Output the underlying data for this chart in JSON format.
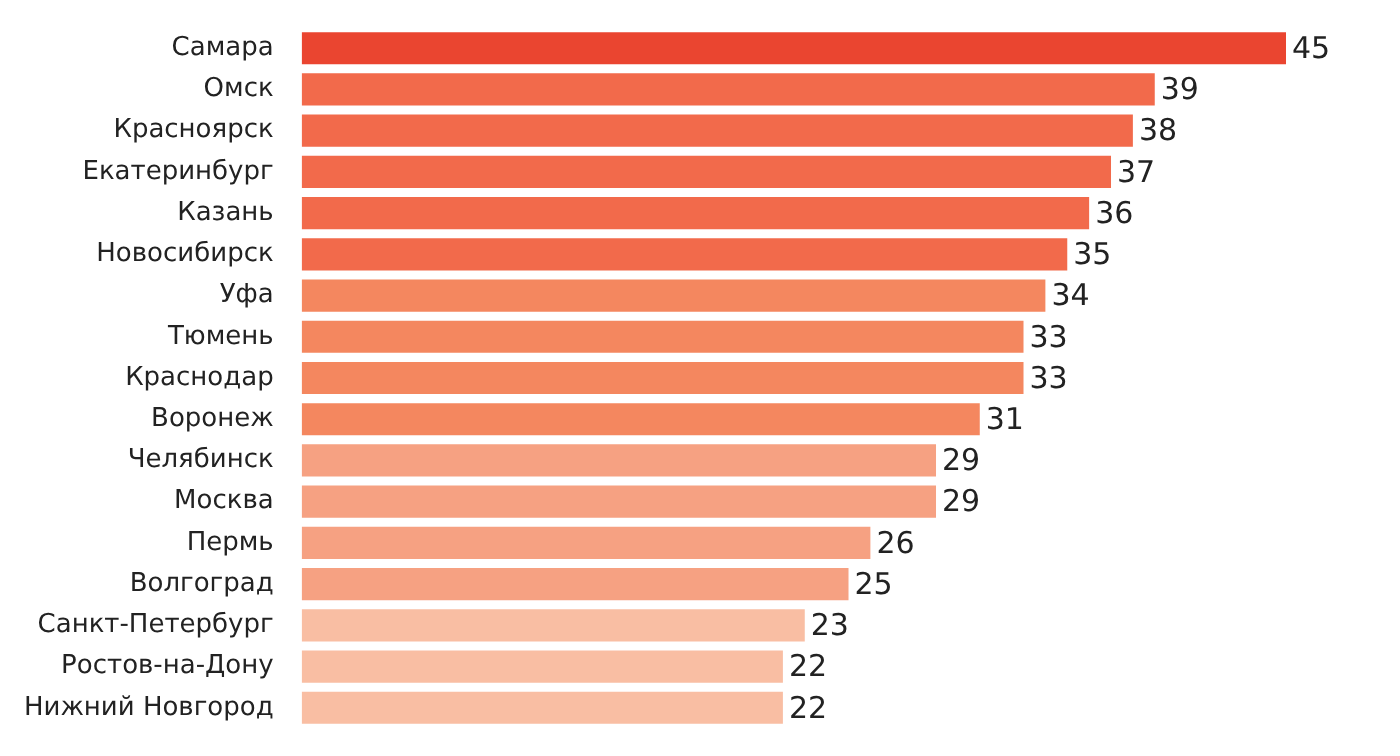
{
  "chart_data": {
    "type": "bar",
    "orientation": "horizontal",
    "data_labels": true,
    "categories": [
      "Самара",
      "Омск",
      "Красноярск",
      "Екатеринбург",
      "Казань",
      "Новосибирск",
      "Уфа",
      "Тюмень",
      "Краснодар",
      "Воронеж",
      "Челябинск",
      "Москва",
      "Пермь",
      "Волгоград",
      "Санкт-Петербург",
      "Ростов-на-Дону",
      "Нижний Новгород"
    ],
    "values": [
      45,
      39,
      38,
      37,
      36,
      35,
      34,
      33,
      33,
      31,
      29,
      29,
      26,
      25,
      23,
      22,
      22
    ],
    "colors": [
      "#ea4530",
      "#f26a4b",
      "#f26a4b",
      "#f26a4b",
      "#f26a4b",
      "#f26a4b",
      "#f4875f",
      "#f4875f",
      "#f4875f",
      "#f4875f",
      "#f6a182",
      "#f6a182",
      "#f6a182",
      "#f6a182",
      "#f9bea3",
      "#f9bea3",
      "#f9bea3"
    ],
    "tick_labels": "y"
  }
}
